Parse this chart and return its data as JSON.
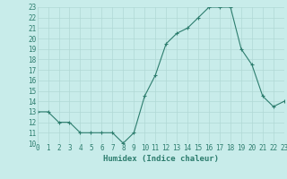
{
  "x": [
    0,
    1,
    2,
    3,
    4,
    5,
    6,
    7,
    8,
    9,
    10,
    11,
    12,
    13,
    14,
    15,
    16,
    17,
    18,
    19,
    20,
    21,
    22,
    23
  ],
  "y": [
    13,
    13,
    12,
    12,
    11,
    11,
    11,
    11,
    10,
    11,
    14.5,
    16.5,
    19.5,
    20.5,
    21,
    22,
    23,
    23,
    23,
    19,
    17.5,
    14.5,
    13.5,
    14
  ],
  "line_color": "#2d7d6e",
  "marker": "+",
  "bg_color": "#c8ecea",
  "grid_color": "#b0d8d5",
  "xlabel": "Humidex (Indice chaleur)",
  "ylim": [
    10,
    23
  ],
  "xlim": [
    0,
    23
  ],
  "yticks": [
    10,
    11,
    12,
    13,
    14,
    15,
    16,
    17,
    18,
    19,
    20,
    21,
    22,
    23
  ],
  "xticks": [
    0,
    1,
    2,
    3,
    4,
    5,
    6,
    7,
    8,
    9,
    10,
    11,
    12,
    13,
    14,
    15,
    16,
    17,
    18,
    19,
    20,
    21,
    22,
    23
  ],
  "tick_color": "#2d7d6e",
  "label_color": "#2d7d6e",
  "xlabel_fontsize": 6.5,
  "tick_fontsize": 5.5,
  "markersize": 3,
  "linewidth": 0.8
}
